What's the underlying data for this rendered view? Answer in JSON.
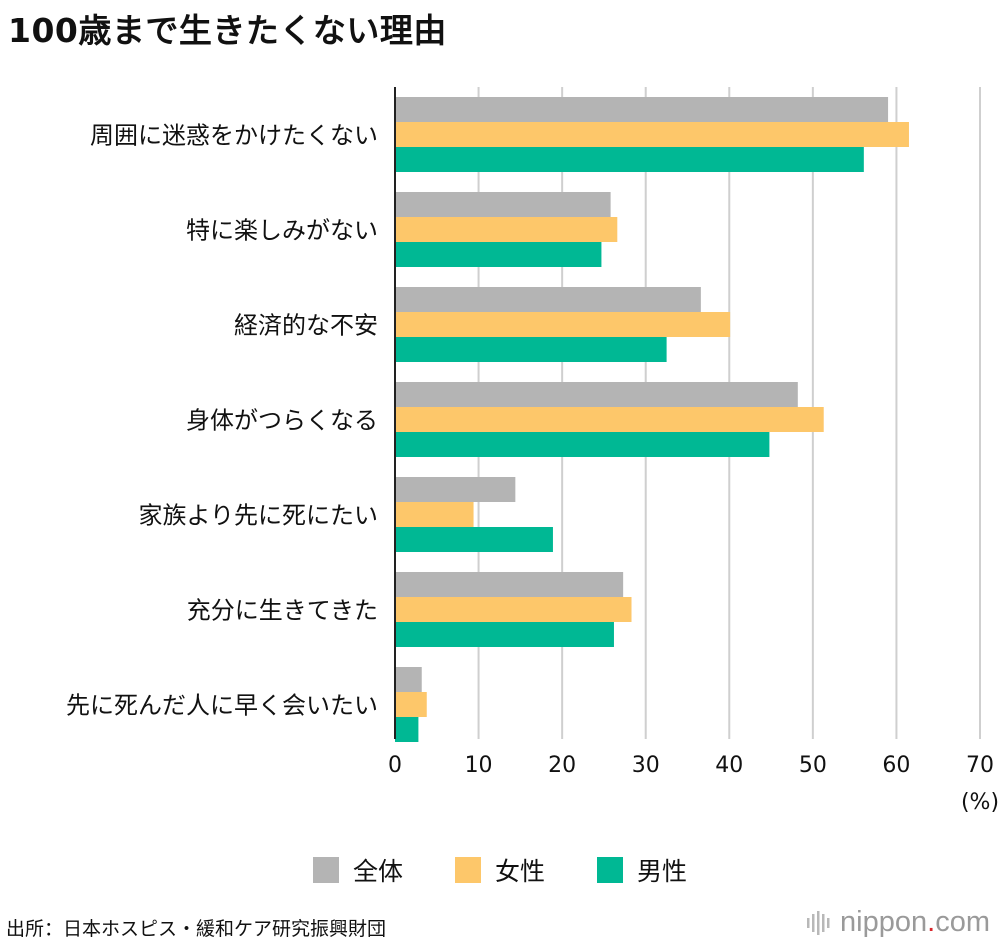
{
  "title": "100歳まで生きたくない理由",
  "source": "出所：日本ホスピス・緩和ケア研究振興財団",
  "brand": {
    "name_part1": "nippon",
    "dot": ".",
    "name_part2": "com",
    "icon": "sound-wave-icon"
  },
  "colors": {
    "all": "#b4b4b4",
    "female": "#fdc76a",
    "male": "#00b894",
    "grid": "#cfcfcf",
    "axis": "#222222",
    "brand_dot": "#d9262c"
  },
  "chart_data": {
    "type": "bar",
    "orientation": "horizontal",
    "title": "100歳まで生きたくない理由",
    "categories": [
      "周囲に迷惑をかけたくない",
      "特に楽しみがない",
      "経済的な不安",
      "身体がつらくなる",
      "家族より先に死にたい",
      "充分に生きてきた",
      "先に死んだ人に早く会いたい"
    ],
    "series": [
      {
        "name": "全体",
        "color": "#b4b4b4",
        "values": [
          59.0,
          25.8,
          36.6,
          48.2,
          14.4,
          27.3,
          3.2
        ]
      },
      {
        "name": "女性",
        "color": "#fdc76a",
        "values": [
          61.5,
          26.6,
          40.1,
          51.3,
          9.4,
          28.3,
          3.8
        ]
      },
      {
        "name": "男性",
        "color": "#00b894",
        "values": [
          56.1,
          24.7,
          32.5,
          44.8,
          18.9,
          26.2,
          2.8
        ]
      }
    ],
    "xlim": [
      0,
      70
    ],
    "xticks": [
      0,
      10,
      20,
      30,
      40,
      50,
      60,
      70
    ],
    "xunit": "(%)",
    "grid": true,
    "legend": [
      "全体",
      "女性",
      "男性"
    ],
    "legend_position": "bottom-center"
  }
}
